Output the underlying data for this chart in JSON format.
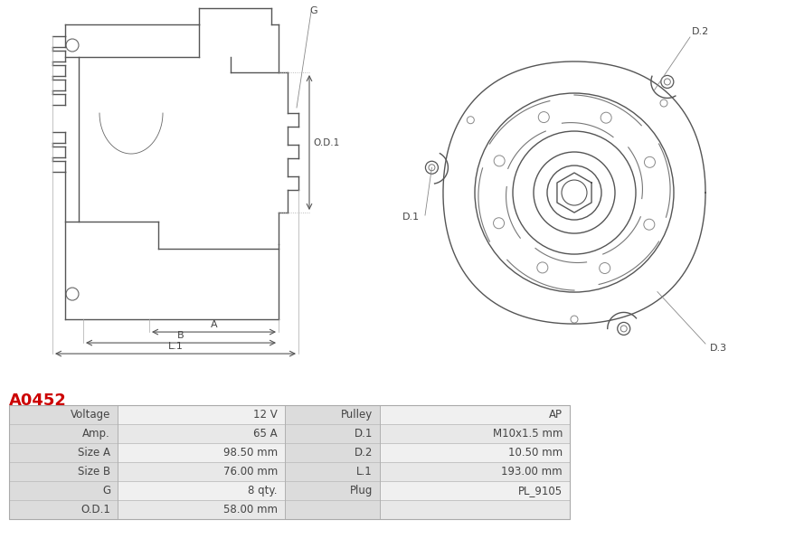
{
  "title": "A0452",
  "title_color": "#cc0000",
  "bg_color": "#ffffff",
  "table_rows": [
    [
      "Voltage",
      "12 V",
      "Pulley",
      "AP"
    ],
    [
      "Amp.",
      "65 A",
      "D.1",
      "M10x1.5 mm"
    ],
    [
      "Size A",
      "98.50 mm",
      "D.2",
      "10.50 mm"
    ],
    [
      "Size B",
      "76.00 mm",
      "L.1",
      "193.00 mm"
    ],
    [
      "G",
      "8 qty.",
      "Plug",
      "PL_9105"
    ],
    [
      "O.D.1",
      "58.00 mm",
      "",
      ""
    ]
  ],
  "line_color": "#aaaaaa",
  "draw_color": "#555555",
  "text_color": "#444444",
  "dim_color": "#888888"
}
